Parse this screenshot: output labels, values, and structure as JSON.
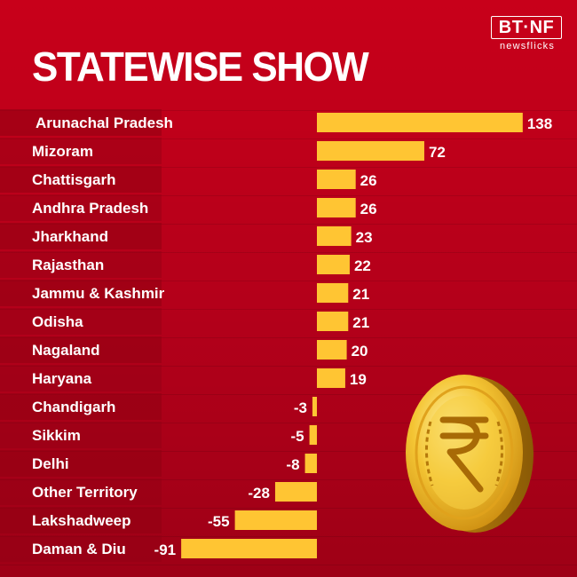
{
  "title": "STATEWISE SHOW",
  "logo": {
    "main": "BT·NF",
    "sub": "newsflicks",
    "icon": "bt-newsflicks-logo"
  },
  "decoration": {
    "coin_icon": "rupee-coin-icon"
  },
  "colors": {
    "background": "#c00018",
    "bar": "#ffc533",
    "label_band": "#8f0013",
    "text": "#ffffff"
  },
  "chart_data": {
    "type": "bar",
    "orientation": "horizontal",
    "title": "STATEWISE SHOW",
    "categories": [
      "Arunachal Pradesh",
      "Mizoram",
      "Chattisgarh",
      "Andhra Pradesh",
      "Jharkhand",
      "Rajasthan",
      "Jammu & Kashmir",
      "Odisha",
      "Nagaland",
      "Haryana",
      "Chandigarh",
      "Sikkim",
      "Delhi",
      "Other Territory",
      "Lakshadweep",
      "Daman & Diu"
    ],
    "values": [
      138,
      72,
      26,
      26,
      23,
      22,
      21,
      21,
      20,
      19,
      -3,
      -5,
      -8,
      -28,
      -55,
      -91
    ],
    "xlim": [
      -91,
      138
    ],
    "grid": false,
    "legend": "none"
  }
}
